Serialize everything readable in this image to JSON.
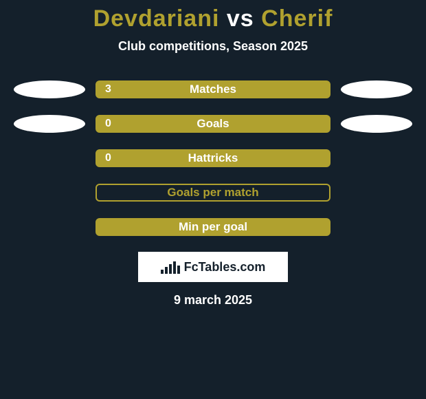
{
  "background_color": "#14202b",
  "accent_color": "#b0a12f",
  "white": "#ffffff",
  "text_dark": "#14202b",
  "title": {
    "player1": "Devdariani",
    "vs": "vs",
    "player2": "Cherif",
    "player1_color": "#b0a12f",
    "vs_color": "#ffffff",
    "player2_color": "#b0a12f"
  },
  "subtitle": "Club competitions, Season 2025",
  "subtitle_color": "#ffffff",
  "stats": [
    {
      "label": "Matches",
      "value": "3",
      "left_badge": true,
      "right_badge": true,
      "bar_fill": "#b0a12f",
      "bar_border": "#b0a12f",
      "text_color": "#ffffff",
      "left_badge_color": "#ffffff",
      "right_badge_color": "#ffffff"
    },
    {
      "label": "Goals",
      "value": "0",
      "left_badge": true,
      "right_badge": true,
      "bar_fill": "#b0a12f",
      "bar_border": "#b0a12f",
      "text_color": "#ffffff",
      "left_badge_color": "#ffffff",
      "right_badge_color": "#ffffff"
    },
    {
      "label": "Hattricks",
      "value": "0",
      "left_badge": false,
      "right_badge": false,
      "bar_fill": "#b0a12f",
      "bar_border": "#b0a12f",
      "text_color": "#ffffff"
    },
    {
      "label": "Goals per match",
      "value": "",
      "left_badge": false,
      "right_badge": false,
      "bar_fill": "transparent",
      "bar_border": "#b0a12f",
      "text_color": "#b0a12f"
    },
    {
      "label": "Min per goal",
      "value": "",
      "left_badge": false,
      "right_badge": false,
      "bar_fill": "#b0a12f",
      "bar_border": "#b0a12f",
      "text_color": "#ffffff"
    }
  ],
  "logo": {
    "box_bg": "#ffffff",
    "text": "FcTables.com",
    "icon_bars": [
      6,
      10,
      14,
      18,
      12
    ],
    "icon_color": "#14202b",
    "text_color": "#14202b"
  },
  "date": "9 march 2025",
  "date_color": "#ffffff"
}
